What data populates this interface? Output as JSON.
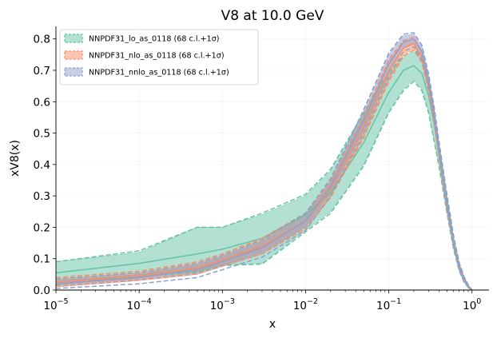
{
  "chart_data": {
    "type": "line",
    "title": "V8 at 10.0 GeV",
    "xlabel": "x",
    "ylabel": "xV8(x)",
    "xscale": "log",
    "xlim": [
      1e-05,
      1.6
    ],
    "ylim": [
      0.0,
      0.84
    ],
    "grid": true,
    "legend_position": "top-left",
    "x_ticks": [
      {
        "base": "10",
        "exp": "−5"
      },
      {
        "base": "10",
        "exp": "−4"
      },
      {
        "base": "10",
        "exp": "−3"
      },
      {
        "base": "10",
        "exp": "−2"
      },
      {
        "base": "10",
        "exp": "−1"
      },
      {
        "base": "10",
        "exp": "0"
      }
    ],
    "y_ticks": [
      "0.0",
      "0.1",
      "0.2",
      "0.3",
      "0.4",
      "0.5",
      "0.6",
      "0.7",
      "0.8"
    ],
    "x": [
      1e-05,
      0.0001,
      0.0005,
      0.001,
      0.003,
      0.01,
      0.02,
      0.05,
      0.1,
      0.15,
      0.2,
      0.25,
      0.3,
      0.35,
      0.4,
      0.5,
      0.6,
      0.7,
      0.8,
      0.9,
      0.95,
      1.0
    ],
    "series": [
      {
        "name": "NNPDF31_lo_as_0118 (68 c.l.+1σ)",
        "color": "#66c2a5",
        "central": [
          0.055,
          0.085,
          0.115,
          0.13,
          0.165,
          0.24,
          0.31,
          0.47,
          0.63,
          0.7,
          0.715,
          0.69,
          0.62,
          0.53,
          0.43,
          0.27,
          0.15,
          0.075,
          0.035,
          0.012,
          0.005,
          0.0
        ],
        "band_lower": [
          0.02,
          0.045,
          0.06,
          0.08,
          0.085,
          0.19,
          0.25,
          0.4,
          0.57,
          0.64,
          0.67,
          0.64,
          0.57,
          0.48,
          0.4,
          0.25,
          0.135,
          0.065,
          0.028,
          0.009,
          0.003,
          0.0
        ],
        "band_upper": [
          0.09,
          0.12,
          0.2,
          0.2,
          0.24,
          0.3,
          0.38,
          0.56,
          0.69,
          0.74,
          0.76,
          0.73,
          0.66,
          0.57,
          0.47,
          0.3,
          0.17,
          0.085,
          0.042,
          0.015,
          0.007,
          0.0
        ],
        "dashed_upper": [
          0.09,
          0.125,
          0.2,
          0.2,
          0.245,
          0.305,
          0.385,
          0.565,
          0.695,
          0.745,
          0.765,
          0.735,
          0.665,
          0.575,
          0.475,
          0.305,
          0.175,
          0.088,
          0.044,
          0.016,
          0.008,
          0.0
        ],
        "dashed_lower": [
          0.018,
          0.042,
          0.058,
          0.078,
          0.083,
          0.185,
          0.245,
          0.395,
          0.565,
          0.635,
          0.665,
          0.635,
          0.565,
          0.475,
          0.395,
          0.245,
          0.13,
          0.062,
          0.026,
          0.008,
          0.002,
          0.0
        ]
      },
      {
        "name": "NNPDF31_nlo_as_0118 (68 c.l.+1σ)",
        "color": "#fc8d62",
        "central": [
          0.025,
          0.045,
          0.07,
          0.095,
          0.14,
          0.22,
          0.32,
          0.52,
          0.7,
          0.77,
          0.785,
          0.74,
          0.65,
          0.55,
          0.44,
          0.27,
          0.15,
          0.075,
          0.035,
          0.012,
          0.005,
          0.0
        ],
        "band_lower": [
          0.015,
          0.035,
          0.055,
          0.08,
          0.12,
          0.2,
          0.3,
          0.49,
          0.67,
          0.75,
          0.77,
          0.73,
          0.64,
          0.54,
          0.43,
          0.26,
          0.145,
          0.07,
          0.032,
          0.01,
          0.004,
          0.0
        ],
        "band_upper": [
          0.035,
          0.055,
          0.085,
          0.11,
          0.16,
          0.24,
          0.34,
          0.55,
          0.73,
          0.79,
          0.8,
          0.755,
          0.665,
          0.56,
          0.45,
          0.28,
          0.155,
          0.08,
          0.038,
          0.014,
          0.006,
          0.0
        ],
        "dashed_upper": [
          0.04,
          0.06,
          0.09,
          0.115,
          0.165,
          0.245,
          0.345,
          0.555,
          0.735,
          0.795,
          0.805,
          0.76,
          0.67,
          0.565,
          0.455,
          0.285,
          0.16,
          0.083,
          0.04,
          0.015,
          0.007,
          0.0
        ],
        "dashed_lower": [
          0.012,
          0.032,
          0.052,
          0.077,
          0.115,
          0.195,
          0.295,
          0.485,
          0.665,
          0.745,
          0.765,
          0.725,
          0.635,
          0.535,
          0.425,
          0.255,
          0.14,
          0.068,
          0.03,
          0.009,
          0.003,
          0.0
        ]
      },
      {
        "name": "NNPDF31_nnlo_as_0118 (68 c.l.+1σ)",
        "color": "#8da0cb",
        "central": [
          0.02,
          0.04,
          0.065,
          0.09,
          0.135,
          0.22,
          0.33,
          0.54,
          0.72,
          0.79,
          0.8,
          0.76,
          0.67,
          0.57,
          0.46,
          0.28,
          0.155,
          0.078,
          0.037,
          0.013,
          0.006,
          0.0
        ],
        "band_lower": [
          0.01,
          0.03,
          0.05,
          0.075,
          0.115,
          0.2,
          0.31,
          0.51,
          0.69,
          0.77,
          0.785,
          0.745,
          0.655,
          0.555,
          0.445,
          0.27,
          0.148,
          0.072,
          0.033,
          0.011,
          0.004,
          0.0
        ],
        "band_upper": [
          0.03,
          0.05,
          0.08,
          0.105,
          0.155,
          0.24,
          0.35,
          0.57,
          0.75,
          0.81,
          0.815,
          0.775,
          0.685,
          0.58,
          0.47,
          0.29,
          0.162,
          0.083,
          0.04,
          0.015,
          0.007,
          0.0
        ],
        "dashed_upper": [
          0.035,
          0.055,
          0.085,
          0.11,
          0.16,
          0.245,
          0.355,
          0.575,
          0.755,
          0.815,
          0.82,
          0.78,
          0.69,
          0.585,
          0.475,
          0.295,
          0.167,
          0.087,
          0.043,
          0.017,
          0.009,
          0.0
        ],
        "dashed_lower": [
          0.005,
          0.02,
          0.04,
          0.065,
          0.105,
          0.19,
          0.3,
          0.5,
          0.68,
          0.76,
          0.775,
          0.735,
          0.645,
          0.545,
          0.435,
          0.26,
          0.14,
          0.066,
          0.029,
          0.009,
          0.003,
          0.0
        ]
      }
    ]
  }
}
